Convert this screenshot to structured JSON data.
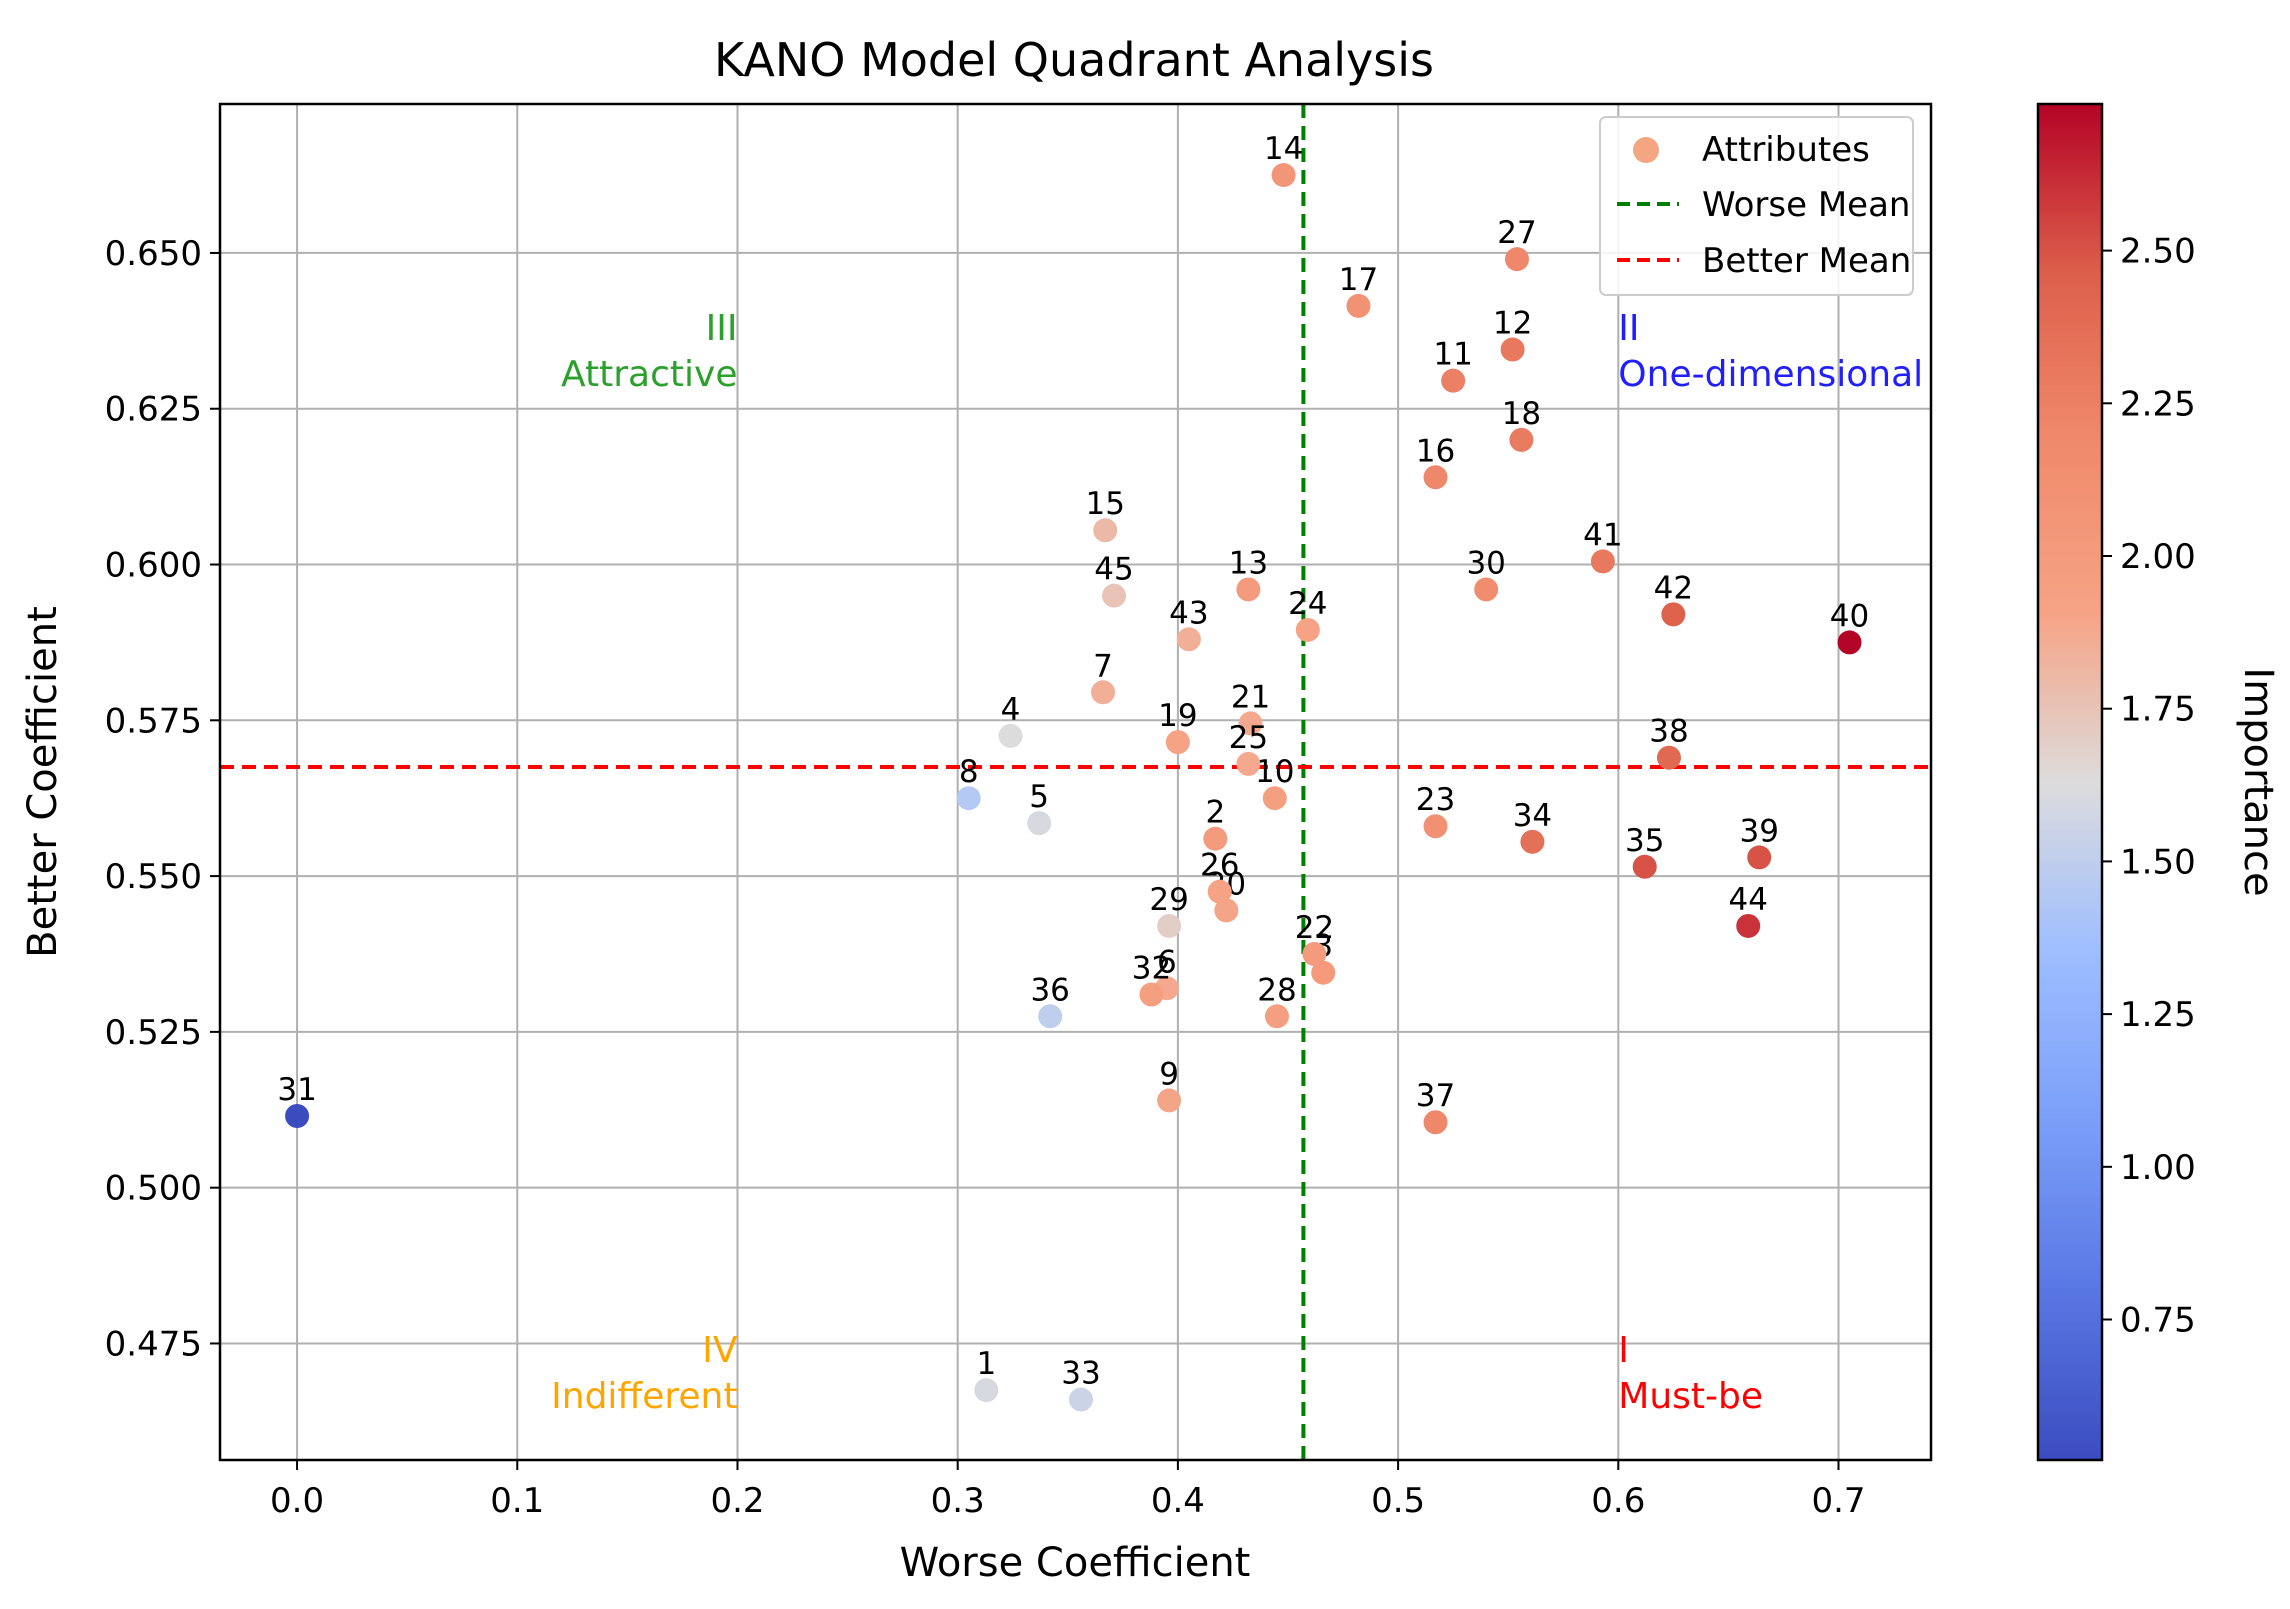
{
  "chart_data": {
    "type": "scatter",
    "title": "KANO Model Quadrant Analysis",
    "xlabel": "Worse Coefficient",
    "ylabel": "Better Coefficient",
    "xlim": [
      -0.035,
      0.742
    ],
    "ylim": [
      0.4563,
      0.6739
    ],
    "xticks": [
      0.0,
      0.1,
      0.2,
      0.3,
      0.4,
      0.5,
      0.6,
      0.7
    ],
    "xtick_labels": [
      "0.0",
      "0.1",
      "0.2",
      "0.3",
      "0.4",
      "0.5",
      "0.6",
      "0.7"
    ],
    "yticks": [
      0.475,
      0.5,
      0.525,
      0.55,
      0.575,
      0.6,
      0.625,
      0.65
    ],
    "ytick_labels": [
      "0.475",
      "0.500",
      "0.525",
      "0.550",
      "0.575",
      "0.600",
      "0.625",
      "0.650"
    ],
    "grid": true,
    "worse_mean": 0.457,
    "better_mean": 0.5675,
    "worse_mean_color": "#008000",
    "better_mean_color": "#ff0000",
    "legend": {
      "placement": "top-right",
      "entries": [
        {
          "label": "Attributes",
          "kind": "marker",
          "color": "#f4a582"
        },
        {
          "label": "Worse Mean",
          "kind": "line",
          "color": "#008000"
        },
        {
          "label": "Better Mean",
          "kind": "line",
          "color": "#ff0000"
        }
      ]
    },
    "colorbar": {
      "label": "Importance",
      "min": 0.52,
      "max": 2.74,
      "ticks": [
        0.75,
        1.0,
        1.25,
        1.5,
        1.75,
        2.0,
        2.25,
        2.5
      ],
      "tick_labels": [
        "0.75",
        "1.00",
        "1.25",
        "1.50",
        "1.75",
        "2.00",
        "2.25",
        "2.50"
      ],
      "colormap": "coolwarm"
    },
    "quadrants": [
      {
        "numeral": "III",
        "name": "Attractive",
        "color": "#2ca02c",
        "x": 0.2,
        "y": 0.636,
        "align": "end"
      },
      {
        "numeral": "II",
        "name": "One-dimensional",
        "color": "#1f1fff",
        "x": 0.6,
        "y": 0.636,
        "align": "start"
      },
      {
        "numeral": "IV",
        "name": "Indifferent",
        "color": "#ffa500",
        "x": 0.2,
        "y": 0.472,
        "align": "end"
      },
      {
        "numeral": "I",
        "name": "Must-be",
        "color": "#ff0000",
        "x": 0.6,
        "y": 0.472,
        "align": "start"
      }
    ],
    "points": [
      {
        "id": "1",
        "worse": 0.313,
        "better": 0.4675,
        "importance": 1.6
      },
      {
        "id": "2",
        "worse": 0.417,
        "better": 0.556,
        "importance": 2.0
      },
      {
        "id": "3",
        "worse": 0.466,
        "better": 0.5345,
        "importance": 2.02
      },
      {
        "id": "4",
        "worse": 0.324,
        "better": 0.5725,
        "importance": 1.63
      },
      {
        "id": "5",
        "worse": 0.337,
        "better": 0.5585,
        "importance": 1.6
      },
      {
        "id": "6",
        "worse": 0.395,
        "better": 0.532,
        "importance": 1.88
      },
      {
        "id": "7",
        "worse": 0.366,
        "better": 0.5795,
        "importance": 1.85
      },
      {
        "id": "8",
        "worse": 0.305,
        "better": 0.5625,
        "importance": 1.45
      },
      {
        "id": "9",
        "worse": 0.396,
        "better": 0.514,
        "importance": 1.9
      },
      {
        "id": "10",
        "worse": 0.444,
        "better": 0.5625,
        "importance": 1.95
      },
      {
        "id": "11",
        "worse": 0.525,
        "better": 0.6295,
        "importance": 2.25
      },
      {
        "id": "12",
        "worse": 0.552,
        "better": 0.6345,
        "importance": 2.3
      },
      {
        "id": "13",
        "worse": 0.432,
        "better": 0.596,
        "importance": 2.0
      },
      {
        "id": "14",
        "worse": 0.448,
        "better": 0.6625,
        "importance": 2.05
      },
      {
        "id": "15",
        "worse": 0.367,
        "better": 0.6055,
        "importance": 1.8
      },
      {
        "id": "16",
        "worse": 0.517,
        "better": 0.614,
        "importance": 2.2
      },
      {
        "id": "17",
        "worse": 0.482,
        "better": 0.6415,
        "importance": 2.1
      },
      {
        "id": "18",
        "worse": 0.556,
        "better": 0.62,
        "importance": 2.28
      },
      {
        "id": "19",
        "worse": 0.4,
        "better": 0.5715,
        "importance": 1.92
      },
      {
        "id": "20",
        "worse": 0.422,
        "better": 0.5445,
        "importance": 1.9
      },
      {
        "id": "21",
        "worse": 0.433,
        "better": 0.5745,
        "importance": 1.88
      },
      {
        "id": "22",
        "worse": 0.462,
        "better": 0.5375,
        "importance": 2.0
      },
      {
        "id": "23",
        "worse": 0.517,
        "better": 0.558,
        "importance": 2.12
      },
      {
        "id": "24",
        "worse": 0.459,
        "better": 0.5895,
        "importance": 1.92
      },
      {
        "id": "25",
        "worse": 0.432,
        "better": 0.568,
        "importance": 1.88
      },
      {
        "id": "26",
        "worse": 0.419,
        "better": 0.5475,
        "importance": 1.92
      },
      {
        "id": "28",
        "worse": 0.445,
        "better": 0.5275,
        "importance": 1.95
      },
      {
        "id": "27",
        "worse": 0.554,
        "better": 0.649,
        "importance": 2.2
      },
      {
        "id": "29",
        "worse": 0.396,
        "better": 0.542,
        "importance": 1.7
      },
      {
        "id": "30",
        "worse": 0.54,
        "better": 0.596,
        "importance": 2.15
      },
      {
        "id": "31",
        "worse": 0.0,
        "better": 0.5115,
        "importance": 0.52
      },
      {
        "id": "32",
        "worse": 0.388,
        "better": 0.531,
        "importance": 1.95
      },
      {
        "id": "33",
        "worse": 0.356,
        "better": 0.466,
        "importance": 1.55
      },
      {
        "id": "34",
        "worse": 0.561,
        "better": 0.5555,
        "importance": 2.35
      },
      {
        "id": "35",
        "worse": 0.612,
        "better": 0.5515,
        "importance": 2.5
      },
      {
        "id": "36",
        "worse": 0.342,
        "better": 0.5275,
        "importance": 1.5
      },
      {
        "id": "37",
        "worse": 0.517,
        "better": 0.5105,
        "importance": 2.2
      },
      {
        "id": "38",
        "worse": 0.623,
        "better": 0.569,
        "importance": 2.4
      },
      {
        "id": "39",
        "worse": 0.664,
        "better": 0.553,
        "importance": 2.5
      },
      {
        "id": "40",
        "worse": 0.705,
        "better": 0.5875,
        "importance": 2.74
      },
      {
        "id": "41",
        "worse": 0.593,
        "better": 0.6005,
        "importance": 2.3
      },
      {
        "id": "42",
        "worse": 0.625,
        "better": 0.592,
        "importance": 2.45
      },
      {
        "id": "43",
        "worse": 0.405,
        "better": 0.588,
        "importance": 1.85
      },
      {
        "id": "44",
        "worse": 0.659,
        "better": 0.542,
        "importance": 2.6
      },
      {
        "id": "45",
        "worse": 0.371,
        "better": 0.595,
        "importance": 1.75
      }
    ]
  }
}
